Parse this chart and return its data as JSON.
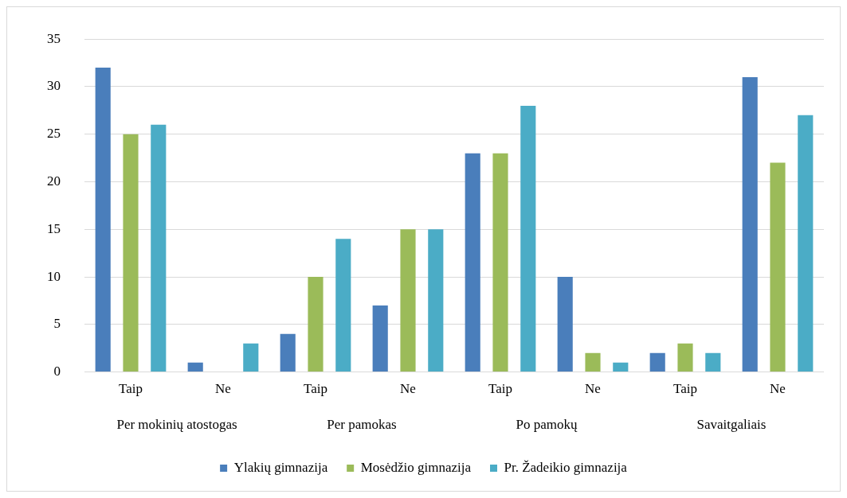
{
  "chart_data": {
    "type": "bar",
    "categories": [
      "Taip",
      "Ne",
      "Taip",
      "Ne",
      "Taip",
      "Ne",
      "Taip",
      "Ne"
    ],
    "annotations": [
      "Per mokinių atostogas",
      "Per pamokas",
      "Po pamokų",
      "Savaitgaliais"
    ],
    "series": [
      {
        "name": "Ylakių gimnazija",
        "color": "#4a7ebb",
        "values": [
          32,
          1,
          4,
          7,
          23,
          10,
          2,
          31
        ]
      },
      {
        "name": "Mosėdžio gimnazija",
        "color": "#9bbb59",
        "values": [
          25,
          0,
          10,
          15,
          23,
          2,
          3,
          22
        ]
      },
      {
        "name": "Pr. Žadeikio gimnazija",
        "color": "#4bacc6",
        "values": [
          26,
          3,
          14,
          15,
          28,
          1,
          2,
          27
        ]
      }
    ],
    "ylim": [
      0,
      35
    ],
    "yticks": [
      0,
      5,
      10,
      15,
      20,
      25,
      30,
      35
    ],
    "grid": "y",
    "legend": "bottom"
  }
}
